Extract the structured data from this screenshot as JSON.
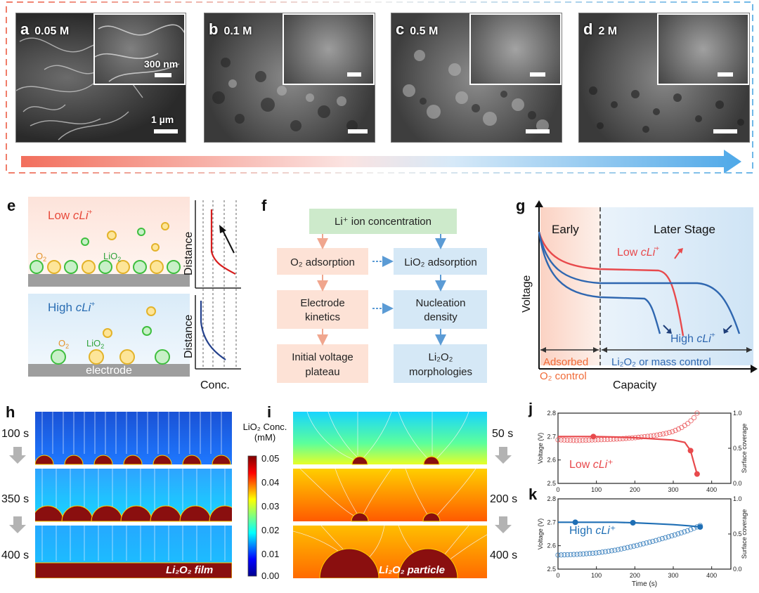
{
  "panels": {
    "a": {
      "letter": "a",
      "conc": "0.05 M",
      "scale_inset": "300 nm",
      "scale_main": "1 µm"
    },
    "b": {
      "letter": "b",
      "conc": "0.1 M"
    },
    "c": {
      "letter": "c",
      "conc": "0.5 M"
    },
    "d": {
      "letter": "d",
      "conc": "2 M"
    }
  },
  "letters": {
    "e": "e",
    "f": "f",
    "g": "g",
    "h": "h",
    "i": "i",
    "j": "j",
    "k": "k"
  },
  "panel_e": {
    "low": "Low ",
    "high": "High ",
    "cli": "cLi",
    "plus": "+",
    "o2": "O",
    "o2_sub": "2",
    "lio2": "LiO",
    "lio2_sub": "2",
    "electrode": "electrode",
    "distance": "Distance",
    "conc": "Conc."
  },
  "panel_f": {
    "top": "Li⁺ ion concentration",
    "o2_ads": "O₂ adsorption",
    "lio2_ads": "LiO₂ adsorption",
    "kin1": "Electrode",
    "kin2": "kinetics",
    "nuc1": "Nucleation",
    "nuc2": "density",
    "ivp1": "Initial voltage",
    "ivp2": "plateau",
    "morph1": "Li₂O₂",
    "morph2": "morphologies"
  },
  "panel_g": {
    "early": "Early",
    "later": "Later Stage",
    "low": "Low ",
    "high": "High ",
    "cli": "cLi",
    "plus": "+",
    "ylabel": "Voltage",
    "xlabel": "Capacity",
    "adsorbed1": "Adsorbed",
    "adsorbed2": "O₂ control",
    "mass": "Li₂O₂ or mass control"
  },
  "panel_h": {
    "t1": "100 s",
    "t2": "350 s",
    "t3": "400 s",
    "label": "Li₂O₂ film"
  },
  "panel_i": {
    "t1": "50 s",
    "t2": "200 s",
    "t3": "400 s",
    "label": "Li₂O₂ particle"
  },
  "colorbar": {
    "title1": "LiO₂ Conc.",
    "title2": "(mM)",
    "ticks": [
      "0.05",
      "0.04",
      "0.03",
      "0.02",
      "0.01",
      "0.00"
    ]
  },
  "chart_data": [
    {
      "type": "line",
      "id": "j",
      "title": "",
      "xlabel": "",
      "ylabel": "Voltage (V)",
      "ylabel_right": "Surface coverage",
      "xlim": [
        0,
        450
      ],
      "ylim": [
        2.5,
        2.8
      ],
      "ylim_right": [
        0,
        1
      ],
      "xticks": [
        0,
        100,
        200,
        300,
        400
      ],
      "yticks": [
        2.5,
        2.6,
        2.7,
        2.8
      ],
      "yticks_right": [
        0.0,
        0.5,
        1.0
      ],
      "annotation": "Low cLi⁺",
      "color": "#e8494c",
      "series": [
        {
          "name": "Voltage",
          "axis": "left",
          "x": [
            0,
            50,
            92,
            150,
            200,
            250,
            300,
            330,
            345,
            355,
            362
          ],
          "y": [
            2.7,
            2.7,
            2.7,
            2.698,
            2.695,
            2.69,
            2.685,
            2.675,
            2.64,
            2.58,
            2.54
          ],
          "markers_at": [
            92,
            345,
            362
          ]
        },
        {
          "name": "Surface coverage",
          "axis": "right",
          "x": [
            0,
            50,
            100,
            150,
            200,
            250,
            280,
            300,
            320,
            340,
            355,
            362
          ],
          "y": [
            0.62,
            0.61,
            0.62,
            0.63,
            0.65,
            0.68,
            0.71,
            0.74,
            0.79,
            0.86,
            0.94,
            1.0
          ]
        }
      ]
    },
    {
      "type": "line",
      "id": "k",
      "xlabel": "Time (s)",
      "ylabel": "Voltage (V)",
      "ylabel_right": "Surface coverage",
      "xlim": [
        0,
        450
      ],
      "ylim": [
        2.5,
        2.8
      ],
      "ylim_right": [
        0,
        1
      ],
      "xticks": [
        0,
        100,
        200,
        300,
        400
      ],
      "yticks": [
        2.5,
        2.6,
        2.7,
        2.8
      ],
      "yticks_right": [
        0.0,
        0.5,
        1.0
      ],
      "annotation": "High cLi⁺",
      "color": "#1f6fb5",
      "series": [
        {
          "name": "Voltage",
          "axis": "left",
          "x": [
            0,
            45,
            100,
            150,
            195,
            250,
            300,
            340,
            370
          ],
          "y": [
            2.7,
            2.7,
            2.7,
            2.7,
            2.698,
            2.694,
            2.69,
            2.685,
            2.68
          ],
          "markers_at": [
            45,
            195,
            370
          ]
        },
        {
          "name": "Surface coverage",
          "axis": "right",
          "x": [
            0,
            50,
            100,
            150,
            200,
            250,
            300,
            340,
            370
          ],
          "y": [
            0.2,
            0.21,
            0.23,
            0.27,
            0.33,
            0.4,
            0.48,
            0.55,
            0.62
          ]
        }
      ]
    }
  ]
}
